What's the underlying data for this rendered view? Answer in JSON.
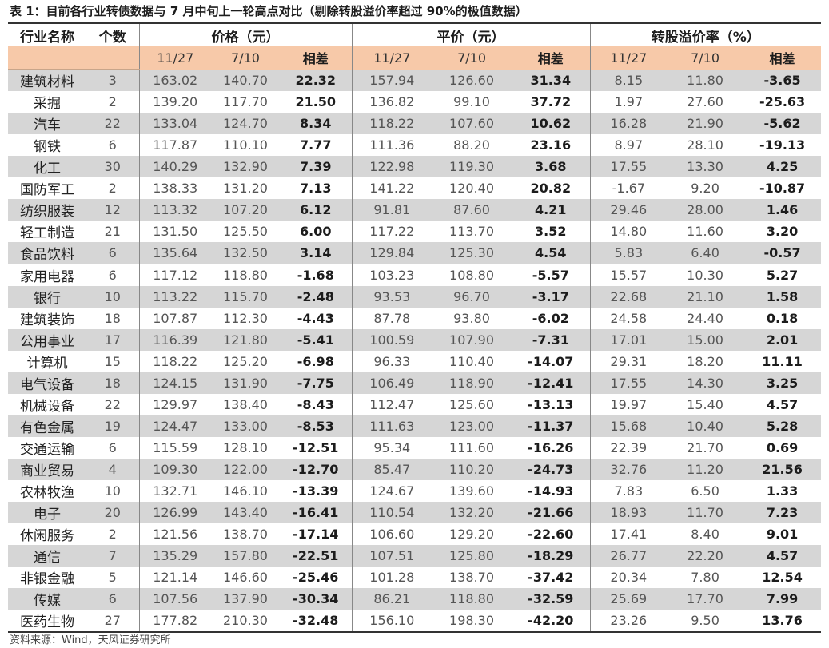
{
  "caption": "表 1：目前各行业转债数据与 7 月中旬上一轮高点对比（剔除转股溢价率超过 90%的极值数据）",
  "headers": {
    "industry": "行业名称",
    "count": "个数",
    "price": "价格（元）",
    "parity": "平价（元）",
    "premium": "转股溢价率（%）"
  },
  "subheaders": {
    "d1": "11/27",
    "d2": "7/10",
    "diff": "相差"
  },
  "rows": [
    {
      "name": "建筑材料",
      "count": "3",
      "p1": "163.02",
      "p2": "140.70",
      "pd": "22.32",
      "v1": "157.94",
      "v2": "126.60",
      "vd": "31.34",
      "r1": "8.15",
      "r2": "11.80",
      "rd": "-3.65"
    },
    {
      "name": "采掘",
      "count": "2",
      "p1": "139.20",
      "p2": "117.70",
      "pd": "21.50",
      "v1": "136.82",
      "v2": "99.10",
      "vd": "37.72",
      "r1": "1.97",
      "r2": "27.60",
      "rd": "-25.63"
    },
    {
      "name": "汽车",
      "count": "22",
      "p1": "133.04",
      "p2": "124.70",
      "pd": "8.34",
      "v1": "118.22",
      "v2": "107.60",
      "vd": "10.62",
      "r1": "16.28",
      "r2": "21.90",
      "rd": "-5.62"
    },
    {
      "name": "钢铁",
      "count": "6",
      "p1": "117.87",
      "p2": "110.10",
      "pd": "7.77",
      "v1": "111.36",
      "v2": "88.20",
      "vd": "23.16",
      "r1": "8.97",
      "r2": "28.10",
      "rd": "-19.13"
    },
    {
      "name": "化工",
      "count": "30",
      "p1": "140.29",
      "p2": "132.90",
      "pd": "7.39",
      "v1": "122.98",
      "v2": "119.30",
      "vd": "3.68",
      "r1": "17.55",
      "r2": "13.30",
      "rd": "4.25"
    },
    {
      "name": "国防军工",
      "count": "2",
      "p1": "138.33",
      "p2": "131.20",
      "pd": "7.13",
      "v1": "141.22",
      "v2": "120.40",
      "vd": "20.82",
      "r1": "-1.67",
      "r2": "9.20",
      "rd": "-10.87"
    },
    {
      "name": "纺织服装",
      "count": "12",
      "p1": "113.32",
      "p2": "107.20",
      "pd": "6.12",
      "v1": "91.81",
      "v2": "87.60",
      "vd": "4.21",
      "r1": "29.46",
      "r2": "28.00",
      "rd": "1.46"
    },
    {
      "name": "轻工制造",
      "count": "21",
      "p1": "131.50",
      "p2": "125.50",
      "pd": "6.00",
      "v1": "117.22",
      "v2": "113.70",
      "vd": "3.52",
      "r1": "14.80",
      "r2": "11.60",
      "rd": "3.20"
    },
    {
      "name": "食品饮料",
      "count": "6",
      "p1": "135.64",
      "p2": "132.50",
      "pd": "3.14",
      "v1": "129.84",
      "v2": "125.30",
      "vd": "4.54",
      "r1": "5.83",
      "r2": "6.40",
      "rd": "-0.57"
    },
    {
      "name": "家用电器",
      "count": "6",
      "p1": "117.12",
      "p2": "118.80",
      "pd": "-1.68",
      "v1": "103.23",
      "v2": "108.80",
      "vd": "-5.57",
      "r1": "15.57",
      "r2": "10.30",
      "rd": "5.27"
    },
    {
      "name": "银行",
      "count": "10",
      "p1": "113.22",
      "p2": "115.70",
      "pd": "-2.48",
      "v1": "93.53",
      "v2": "96.70",
      "vd": "-3.17",
      "r1": "22.68",
      "r2": "21.10",
      "rd": "1.58"
    },
    {
      "name": "建筑装饰",
      "count": "18",
      "p1": "107.87",
      "p2": "112.30",
      "pd": "-4.43",
      "v1": "87.78",
      "v2": "93.80",
      "vd": "-6.02",
      "r1": "24.58",
      "r2": "24.40",
      "rd": "0.18"
    },
    {
      "name": "公用事业",
      "count": "17",
      "p1": "116.39",
      "p2": "121.80",
      "pd": "-5.41",
      "v1": "100.59",
      "v2": "107.90",
      "vd": "-7.31",
      "r1": "17.01",
      "r2": "15.00",
      "rd": "2.01"
    },
    {
      "name": "计算机",
      "count": "15",
      "p1": "118.22",
      "p2": "125.20",
      "pd": "-6.98",
      "v1": "96.33",
      "v2": "110.40",
      "vd": "-14.07",
      "r1": "29.31",
      "r2": "18.20",
      "rd": "11.11"
    },
    {
      "name": "电气设备",
      "count": "18",
      "p1": "124.15",
      "p2": "131.90",
      "pd": "-7.75",
      "v1": "106.49",
      "v2": "118.90",
      "vd": "-12.41",
      "r1": "17.55",
      "r2": "14.30",
      "rd": "3.25"
    },
    {
      "name": "机械设备",
      "count": "22",
      "p1": "129.97",
      "p2": "138.40",
      "pd": "-8.43",
      "v1": "112.47",
      "v2": "125.60",
      "vd": "-13.13",
      "r1": "19.97",
      "r2": "15.40",
      "rd": "4.57"
    },
    {
      "name": "有色金属",
      "count": "19",
      "p1": "124.47",
      "p2": "133.00",
      "pd": "-8.53",
      "v1": "111.63",
      "v2": "123.00",
      "vd": "-11.37",
      "r1": "15.68",
      "r2": "10.40",
      "rd": "5.28"
    },
    {
      "name": "交通运输",
      "count": "6",
      "p1": "115.59",
      "p2": "128.10",
      "pd": "-12.51",
      "v1": "95.34",
      "v2": "111.60",
      "vd": "-16.26",
      "r1": "22.39",
      "r2": "21.70",
      "rd": "0.69"
    },
    {
      "name": "商业贸易",
      "count": "4",
      "p1": "109.30",
      "p2": "122.00",
      "pd": "-12.70",
      "v1": "85.47",
      "v2": "110.20",
      "vd": "-24.73",
      "r1": "32.76",
      "r2": "11.20",
      "rd": "21.56"
    },
    {
      "name": "农林牧渔",
      "count": "10",
      "p1": "132.71",
      "p2": "146.10",
      "pd": "-13.39",
      "v1": "124.67",
      "v2": "139.60",
      "vd": "-14.93",
      "r1": "7.83",
      "r2": "6.50",
      "rd": "1.33"
    },
    {
      "name": "电子",
      "count": "20",
      "p1": "126.99",
      "p2": "143.40",
      "pd": "-16.41",
      "v1": "110.54",
      "v2": "132.20",
      "vd": "-21.66",
      "r1": "18.93",
      "r2": "11.70",
      "rd": "7.23"
    },
    {
      "name": "休闲服务",
      "count": "2",
      "p1": "121.56",
      "p2": "138.70",
      "pd": "-17.14",
      "v1": "106.60",
      "v2": "129.20",
      "vd": "-22.60",
      "r1": "17.41",
      "r2": "8.40",
      "rd": "9.01"
    },
    {
      "name": "通信",
      "count": "7",
      "p1": "135.29",
      "p2": "157.80",
      "pd": "-22.51",
      "v1": "107.51",
      "v2": "125.80",
      "vd": "-18.29",
      "r1": "26.77",
      "r2": "22.20",
      "rd": "4.57"
    },
    {
      "name": "非银金融",
      "count": "5",
      "p1": "121.14",
      "p2": "146.60",
      "pd": "-25.46",
      "v1": "101.28",
      "v2": "138.70",
      "vd": "-37.42",
      "r1": "20.34",
      "r2": "7.80",
      "rd": "12.54"
    },
    {
      "name": "传媒",
      "count": "6",
      "p1": "107.56",
      "p2": "137.90",
      "pd": "-30.34",
      "v1": "86.21",
      "v2": "118.80",
      "vd": "-32.59",
      "r1": "25.69",
      "r2": "17.70",
      "rd": "7.99"
    },
    {
      "name": "医药生物",
      "count": "27",
      "p1": "177.82",
      "p2": "210.30",
      "pd": "-32.48",
      "v1": "156.10",
      "v2": "198.30",
      "vd": "-42.20",
      "r1": "23.26",
      "r2": "9.50",
      "rd": "13.76"
    }
  ],
  "source": "资料来源：Wind，天风证券研究所"
}
